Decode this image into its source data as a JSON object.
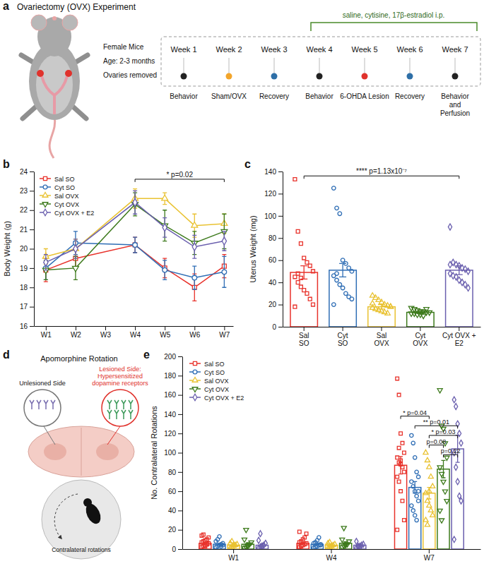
{
  "panel_labels": [
    "a",
    "b",
    "c",
    "d",
    "e"
  ],
  "diagram_a": {
    "title": "Ovariectomy (OVX) Experiment",
    "subject": [
      "Female Mice",
      "Age: 2-3 months",
      "Ovaries removed"
    ],
    "treatment": "saline, cytisine, 17β-estradiol i.p.",
    "weeks": [
      "Week 1",
      "Week 2",
      "Week 3",
      "Week 4",
      "Week 5",
      "Week 6",
      "Week 7"
    ],
    "events": [
      {
        "label": [
          "Behavior"
        ],
        "color": "#222222"
      },
      {
        "label": [
          "Sham/OVX"
        ],
        "color": "#f2a52b"
      },
      {
        "label": [
          "Recovery"
        ],
        "color": "#2e6fa7"
      },
      {
        "label": [
          "Behavior"
        ],
        "color": "#222222"
      },
      {
        "label": [
          "6-OHDA Lesion"
        ],
        "color": "#e0322c"
      },
      {
        "label": [
          "Recovery"
        ],
        "color": "#2e6fa7"
      },
      {
        "label": [
          "Behavior",
          "and",
          "Perfusion"
        ],
        "color": "#222222"
      }
    ]
  },
  "diagram_d": {
    "title": "Apomorphine Rotation",
    "unlesioned": "Unlesioned Side",
    "lesioned": [
      "Lesioned Side:",
      "Hypersensitized",
      "dopamine receptors"
    ],
    "rotation": "Contralateral rotations"
  },
  "chart_data": [
    {
      "type": "line",
      "y_label": "Body Weight (g)",
      "x": [
        1,
        2,
        4,
        5,
        6,
        7
      ],
      "xlim": [
        0.6,
        7.3
      ],
      "xticks": [
        {
          "value": 1,
          "label": "W1"
        },
        {
          "value": 2,
          "label": "W2"
        },
        {
          "value": 3,
          "label": "W3"
        },
        {
          "value": 4,
          "label": "W4"
        },
        {
          "value": 5,
          "label": "W5"
        },
        {
          "value": 6,
          "label": "W6"
        },
        {
          "value": 7,
          "label": "W7"
        }
      ],
      "ylim": [
        16,
        24
      ],
      "yticks": [
        16,
        17,
        18,
        19,
        20,
        21,
        22,
        23,
        24
      ],
      "legend": "upper left",
      "series": [
        {
          "name": "Sal SO",
          "color": "#e8322b",
          "marker": "square",
          "values": [
            18.9,
            19.5,
            20.2,
            19.0,
            18.0,
            19.1
          ],
          "errors": [
            0.6,
            0.5,
            0.4,
            0.5,
            0.7,
            0.6
          ]
        },
        {
          "name": "Cyt SO",
          "color": "#2f6eb5",
          "marker": "circle",
          "values": [
            19.0,
            20.3,
            20.2,
            18.9,
            18.5,
            18.8
          ],
          "errors": [
            0.6,
            0.6,
            0.4,
            0.5,
            0.6,
            0.8
          ]
        },
        {
          "name": "Sal OVX",
          "color": "#e9c232",
          "marker": "triangle",
          "values": [
            19.6,
            20.0,
            22.6,
            22.6,
            21.2,
            21.3
          ],
          "errors": [
            0.4,
            0.5,
            0.5,
            0.3,
            0.6,
            0.5
          ]
        },
        {
          "name": "Cyt OVX",
          "color": "#3d7a1c",
          "marker": "triangle-down",
          "values": [
            18.9,
            19.0,
            22.3,
            21.2,
            20.3,
            20.9
          ],
          "errors": [
            0.5,
            0.6,
            0.6,
            0.8,
            0.6,
            0.9
          ]
        },
        {
          "name": "Cyt OVX + E2",
          "color": "#6a5fae",
          "marker": "diamond",
          "values": [
            19.3,
            20.0,
            22.4,
            21.1,
            20.1,
            20.4
          ],
          "errors": [
            0.4,
            0.5,
            0.6,
            0.5,
            0.6,
            0.5
          ]
        }
      ],
      "annotations": [
        {
          "text": "* p=0.02",
          "x": [
            4,
            7
          ],
          "y": 23.6
        }
      ]
    },
    {
      "type": "bar",
      "y_label": "Uterus Weight (mg)",
      "categories": [
        "Sal SO",
        "Cyt SO",
        "Sal OVX",
        "Cyt OVX",
        "Cyt OVX + E2"
      ],
      "values": [
        49,
        51,
        18,
        13,
        51
      ],
      "errors": [
        6,
        6,
        2,
        1,
        4
      ],
      "colors": [
        "#e8322b",
        "#2f6eb5",
        "#e9c232",
        "#3d7a1c",
        "#6a5fae"
      ],
      "points": [
        [
          133,
          86,
          75,
          62,
          58,
          55,
          50,
          45,
          40,
          36,
          33,
          30,
          25,
          20,
          18,
          48,
          44
        ],
        [
          125,
          107,
          102,
          60,
          57,
          53,
          50,
          46,
          42,
          38,
          35,
          30,
          27,
          25,
          20,
          48
        ],
        [
          28,
          26,
          24,
          22,
          20,
          19,
          18,
          17,
          16,
          15,
          14,
          13,
          12,
          18,
          21
        ],
        [
          17,
          16,
          15,
          14,
          14,
          13,
          13,
          12,
          12,
          11,
          11,
          10,
          16
        ],
        [
          90,
          58,
          56,
          55,
          53,
          52,
          50,
          48,
          46,
          45,
          42,
          40,
          38,
          35,
          56
        ]
      ],
      "ylim": [
        0,
        140
      ],
      "yticks": [
        0,
        20,
        40,
        60,
        80,
        100,
        120,
        140
      ],
      "annotations": [
        {
          "text": "**** p=1.13x10⁻⁷",
          "from": "Sal SO",
          "to": "Cyt OVX + E2",
          "y": 136
        }
      ]
    },
    {
      "type": "bar",
      "y_label": "No. Contralateral Rotations",
      "categories": [
        "W1",
        "W4",
        "W7"
      ],
      "ylim": [
        0,
        200
      ],
      "yticks": [
        0,
        20,
        40,
        60,
        80,
        100,
        120,
        140,
        160,
        180,
        200
      ],
      "legend": "upper left",
      "series": [
        {
          "name": "Sal SO",
          "color": "#e8322b",
          "marker": "square",
          "values": [
            6,
            6,
            87
          ],
          "errors": [
            1,
            1,
            9
          ],
          "points": [
            [
              2,
              3,
              4,
              5,
              6,
              7,
              8,
              9,
              10,
              12,
              14,
              15,
              3,
              5
            ],
            [
              2,
              3,
              4,
              5,
              6,
              7,
              8,
              10,
              12,
              16,
              18,
              4
            ],
            [
              177,
              160,
              120,
              110,
              100,
              95,
              90,
              88,
              85,
              80,
              75,
              70,
              60,
              50,
              30,
              20,
              105,
              92
            ]
          ]
        },
        {
          "name": "Cyt SO",
          "color": "#2f6eb5",
          "marker": "circle",
          "values": [
            5,
            5,
            64
          ],
          "errors": [
            1,
            1,
            6
          ],
          "points": [
            [
              2,
              3,
              4,
              5,
              6,
              8,
              10,
              13,
              3,
              4
            ],
            [
              1,
              2,
              3,
              4,
              5,
              6,
              7,
              9,
              12,
              4
            ],
            [
              118,
              110,
              95,
              80,
              75,
              70,
              65,
              60,
              55,
              50,
              45,
              40,
              35,
              30,
              60
            ]
          ]
        },
        {
          "name": "Sal OVX",
          "color": "#e9c232",
          "marker": "triangle",
          "values": [
            4,
            4,
            58
          ],
          "errors": [
            1,
            1,
            6
          ],
          "points": [
            [
              1,
              2,
              3,
              4,
              5,
              6,
              8,
              4
            ],
            [
              1,
              2,
              3,
              4,
              5,
              6,
              7,
              3
            ],
            [
              100,
              92,
              85,
              75,
              65,
              58,
              50,
              45,
              40,
              35,
              30,
              25,
              60
            ]
          ]
        },
        {
          "name": "Cyt OVX",
          "color": "#3d7a1c",
          "marker": "triangle-down",
          "values": [
            5,
            6,
            83
          ],
          "errors": [
            1.5,
            1.5,
            9
          ],
          "points": [
            [
              1,
              2,
              3,
              5,
              7,
              10,
              20,
              4
            ],
            [
              2,
              3,
              4,
              5,
              8,
              10,
              22,
              5
            ],
            [
              165,
              128,
              125,
              110,
              95,
              85,
              78,
              70,
              60,
              50,
              40,
              30
            ]
          ]
        },
        {
          "name": "Cyt OVX + E2",
          "color": "#6a5fae",
          "marker": "diamond",
          "values": [
            4,
            4,
            104
          ],
          "errors": [
            1.5,
            1,
            14
          ],
          "points": [
            [
              1,
              2,
              3,
              4,
              6,
              9,
              16,
              3
            ],
            [
              1,
              2,
              3,
              4,
              5,
              8,
              3
            ],
            [
              155,
              148,
              130,
              120,
              110,
              100,
              85,
              70,
              55,
              50,
              10
            ]
          ]
        }
      ],
      "annotations": [
        {
          "text": "* p=0.04",
          "category": "W7",
          "from": "Sal SO",
          "to": "Sal OVX",
          "y": 138
        },
        {
          "text": "** p=0.01",
          "category": "W7",
          "from": "Cyt SO",
          "to": "Cyt OVX + E2",
          "y": 128
        },
        {
          "text": "* p=0.03",
          "category": "W7",
          "from": "Sal OVX",
          "to": "Cyt OVX + E2",
          "y": 118
        },
        {
          "text": "p=0.08",
          "category": "W7",
          "from": "Sal OVX",
          "to": "Cyt OVX",
          "y": 108
        },
        {
          "text": "p=0.22",
          "category": "W7",
          "from": "Cyt OVX",
          "to": "Cyt OVX + E2",
          "y": 98
        }
      ]
    }
  ]
}
